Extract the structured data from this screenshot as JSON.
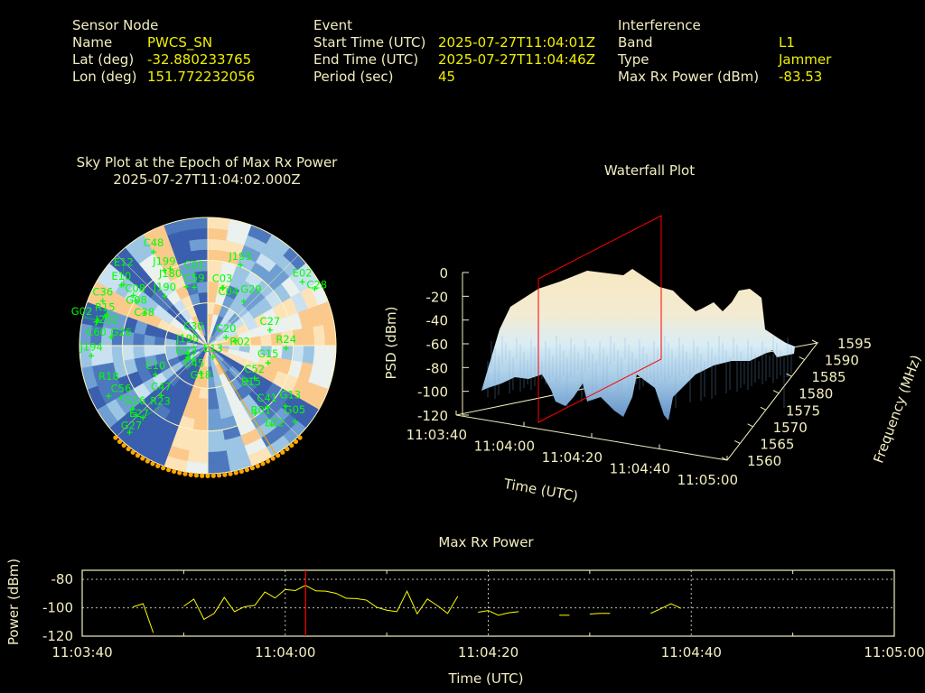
{
  "header": {
    "sensor": {
      "title": "Sensor Node",
      "name_label": "Name",
      "name": "PWCS_SN",
      "lat_label": "Lat (deg)",
      "lat": "-32.880233765",
      "lon_label": "Lon (deg)",
      "lon": "151.772232056"
    },
    "event": {
      "title": "Event",
      "start_label": "Start Time (UTC)",
      "start": "2025-07-27T11:04:01Z",
      "end_label": "End Time (UTC)",
      "end": "2025-07-27T11:04:46Z",
      "period_label": "Period (sec)",
      "period": "45"
    },
    "interference": {
      "title": "Interference",
      "band_label": "Band",
      "band": "L1",
      "type_label": "Type",
      "type": "Jammer",
      "power_label": "Max Rx Power (dBm)",
      "power": "-83.53"
    }
  },
  "colors": {
    "text": "#f3eec0",
    "value": "#f0f000",
    "sat": "#00ff00",
    "jammer": "#ffa500",
    "marker": "#ff0000",
    "line": "#ffff00"
  },
  "chart_data": [
    {
      "type": "scatter",
      "subtype": "polar-skyplot",
      "title": "Sky Plot at the Epoch of Max Rx Power",
      "subtitle": "2025-07-27T11:04:02.000Z",
      "rings_elevation_deg": [
        0,
        30,
        60
      ],
      "satellites": [
        {
          "id": "C48",
          "az": 330,
          "el": 14
        },
        {
          "id": "J199",
          "az": 330,
          "el": 29
        },
        {
          "id": "J180",
          "az": 334,
          "el": 30
        },
        {
          "id": "J193",
          "az": 22,
          "el": 29
        },
        {
          "id": "E02",
          "az": 56,
          "el": 10
        },
        {
          "id": "C28",
          "az": 62,
          "el": 5
        },
        {
          "id": "E10",
          "az": 305,
          "el": 16
        },
        {
          "id": "E12",
          "az": 306,
          "el": 17
        },
        {
          "id": "C08",
          "az": 304,
          "el": 27
        },
        {
          "id": "G08",
          "az": 302,
          "el": 31
        },
        {
          "id": "J190",
          "az": 319,
          "el": 44
        },
        {
          "id": "C59",
          "az": 340,
          "el": 46
        },
        {
          "id": "C01",
          "az": 347,
          "el": 48
        },
        {
          "id": "C03",
          "az": 14,
          "el": 48
        },
        {
          "id": "C04",
          "az": 15,
          "el": 48
        },
        {
          "id": "G29",
          "az": 39,
          "el": 50
        },
        {
          "id": "R15",
          "az": 286,
          "el": 15
        },
        {
          "id": "C36",
          "az": 293,
          "el": 10
        },
        {
          "id": "J202",
          "az": 287,
          "el": 16
        },
        {
          "id": "G02",
          "az": 283,
          "el": 11
        },
        {
          "id": "C60",
          "az": 282,
          "el": 10
        },
        {
          "id": "C38",
          "az": 297,
          "el": 40
        },
        {
          "id": "G26",
          "az": 275,
          "el": 22
        },
        {
          "id": "J194",
          "az": 265,
          "el": 8
        },
        {
          "id": "C27",
          "az": 76,
          "el": 45
        },
        {
          "id": "R24",
          "az": 92,
          "el": 35
        },
        {
          "id": "C20",
          "az": 66,
          "el": 76
        },
        {
          "id": "R02",
          "az": 80,
          "el": 70
        },
        {
          "id": "G15",
          "az": 106,
          "el": 46
        },
        {
          "id": "G23",
          "az": 236,
          "el": 72
        },
        {
          "id": "J195",
          "az": 250,
          "el": 75
        },
        {
          "id": "C45",
          "az": 240,
          "el": 74
        },
        {
          "id": "E13",
          "az": 156,
          "el": 81
        },
        {
          "id": "C30",
          "az": 225,
          "el": 76
        },
        {
          "id": "G18",
          "az": 194,
          "el": 70
        },
        {
          "id": "C10",
          "az": 241,
          "el": 48
        },
        {
          "id": "C52",
          "az": 125,
          "el": 50
        },
        {
          "id": "E15",
          "az": 132,
          "el": 53
        },
        {
          "id": "C47",
          "az": 223,
          "el": 42
        },
        {
          "id": "C56",
          "az": 239,
          "el": 19
        },
        {
          "id": "R18",
          "az": 243,
          "el": 12
        },
        {
          "id": "G16",
          "az": 230,
          "el": 21
        },
        {
          "id": "E27",
          "az": 226,
          "el": 20
        },
        {
          "id": "R23",
          "az": 222,
          "el": 22
        },
        {
          "id": "G27",
          "az": 222,
          "el": 8
        },
        {
          "id": "C41",
          "az": 136,
          "el": 30
        },
        {
          "id": "R01",
          "az": 145,
          "el": 32
        },
        {
          "id": "E22",
          "az": 141,
          "el": 19
        },
        {
          "id": "G13",
          "az": 128,
          "el": 21
        },
        {
          "id": "G05",
          "az": 131,
          "el": 9
        }
      ],
      "jammer_direction_az": 148,
      "jammer_arc_az": [
        135,
        225
      ]
    },
    {
      "type": "surface",
      "title": "Waterfall Plot",
      "xlabel": "Time (UTC)",
      "ylabel": "Frequency (MHz)",
      "zlabel": "PSD (dBm)",
      "x_ticks": [
        "11:03:40",
        "11:04:00",
        "11:04:20",
        "11:04:40",
        "11:05:00"
      ],
      "y_ticks": [
        "1560",
        "1565",
        "1570",
        "1575",
        "1580",
        "1585",
        "1590",
        "1595"
      ],
      "z_ticks": [
        "0",
        "-20",
        "-40",
        "-60",
        "-80",
        "-100",
        "-120"
      ],
      "zlim": [
        -120,
        0
      ],
      "ylim": [
        1560,
        1595
      ],
      "marker_time": "11:04:02"
    },
    {
      "type": "line",
      "title": "Max Rx Power",
      "xlabel": "Time (UTC)",
      "ylabel": "Power (dBm)",
      "x_start": "11:03:40",
      "xlim_sec": [
        0,
        80
      ],
      "ylim": [
        -120,
        -75
      ],
      "x_ticks": [
        {
          "sec": 0,
          "label": "11:03:40"
        },
        {
          "sec": 20,
          "label": "11:04:00"
        },
        {
          "sec": 40,
          "label": "11:04:20"
        },
        {
          "sec": 60,
          "label": "11:04:40"
        },
        {
          "sec": 80,
          "label": "11:05:00"
        }
      ],
      "y_ticks": [
        {
          "v": -80,
          "label": "-80"
        },
        {
          "v": -100,
          "label": "-100"
        },
        {
          "v": -120,
          "label": "-120"
        }
      ],
      "grid": true,
      "marker_sec": 22,
      "segments": [
        [
          [
            5,
            -99.4
          ],
          [
            6,
            -97.1
          ],
          [
            7,
            -117.5
          ]
        ],
        [
          [
            10,
            -98.9
          ],
          [
            11,
            -93.9
          ],
          [
            12,
            -108.1
          ],
          [
            13,
            -103.9
          ],
          [
            14,
            -92.7
          ],
          [
            15,
            -102.7
          ],
          [
            16,
            -99.2
          ],
          [
            17,
            -98.3
          ],
          [
            18,
            -88.9
          ],
          [
            19,
            -93.1
          ],
          [
            20,
            -87.1
          ],
          [
            21,
            -87.9
          ],
          [
            22,
            -84.2
          ],
          [
            23,
            -88.1
          ],
          [
            24,
            -88.3
          ],
          [
            25,
            -89.8
          ],
          [
            26,
            -93.3
          ],
          [
            27,
            -93.5
          ],
          [
            28,
            -94.6
          ],
          [
            29,
            -99.6
          ],
          [
            30,
            -101.7
          ],
          [
            31,
            -102.7
          ],
          [
            32,
            -88.3
          ],
          [
            33,
            -104.2
          ],
          [
            34,
            -93.8
          ],
          [
            35,
            -98.5
          ],
          [
            36,
            -103.9
          ],
          [
            37,
            -91.9
          ]
        ],
        [
          [
            39,
            -103.1
          ],
          [
            40,
            -101.9
          ],
          [
            41,
            -105.2
          ],
          [
            42,
            -103.5
          ],
          [
            43,
            -102.7
          ]
        ],
        [
          [
            47,
            -105.2
          ],
          [
            48,
            -105.2
          ]
        ],
        [
          [
            50,
            -104.4
          ],
          [
            51,
            -103.9
          ],
          [
            52,
            -103.9
          ]
        ],
        [
          [
            56,
            -103.9
          ],
          [
            57,
            -100.6
          ],
          [
            58,
            -97.1
          ],
          [
            59,
            -100.4
          ]
        ]
      ]
    }
  ]
}
